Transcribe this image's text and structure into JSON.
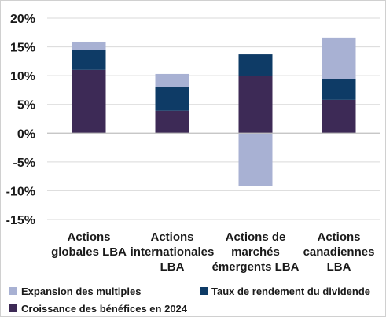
{
  "chart_data": {
    "type": "bar",
    "stacked": true,
    "categories": [
      [
        "Actions",
        "globales LBA"
      ],
      [
        "Actions",
        "internationales",
        "LBA"
      ],
      [
        "Actions de",
        "marchés",
        "émergents LBA"
      ],
      [
        "Actions",
        "canadiennes",
        "LBA"
      ]
    ],
    "series": [
      {
        "name": "Croissance des bénéfices en 2024",
        "color": "#3d2a56",
        "values": [
          11.0,
          3.9,
          10.0,
          5.8
        ]
      },
      {
        "name": "Taux de rendement du dividende",
        "color": "#0e3b66",
        "values": [
          3.5,
          4.2,
          3.7,
          3.6
        ]
      },
      {
        "name": "Expansion des multiples",
        "color": "#a8b1d3",
        "values": [
          1.4,
          2.2,
          -9.2,
          7.2
        ]
      }
    ],
    "ylim": [
      -15,
      20
    ],
    "yticks": [
      20,
      15,
      10,
      5,
      0,
      -5,
      -10,
      -15
    ],
    "ytick_labels": [
      "20%",
      "15%",
      "10%",
      "5%",
      "0%",
      "-5%",
      "-10%",
      "-15%"
    ],
    "grid": true,
    "legend_position": "bottom",
    "legend_order": [
      "Expansion des multiples",
      "Taux de rendement du dividende",
      "Croissance des bénéfices en 2024"
    ]
  }
}
